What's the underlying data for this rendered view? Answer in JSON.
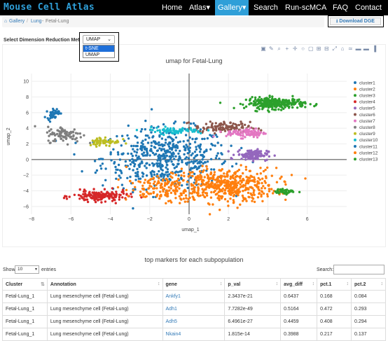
{
  "navbar": {
    "brand": "Mouse Cell Atlas",
    "items": [
      {
        "label": "Home"
      },
      {
        "label": "Atlas▾"
      },
      {
        "label": "Gallery▾"
      },
      {
        "label": "Search"
      },
      {
        "label": "Run-scMCA"
      },
      {
        "label": "FAQ"
      },
      {
        "label": "Contact"
      }
    ]
  },
  "breadcrumb": {
    "gallery": "Gallery",
    "lung": "Lung",
    "current": "Fetal-Lung",
    "sep": "/",
    "sep2": "-"
  },
  "download": {
    "label": "Download DGE",
    "icon": "download-icon"
  },
  "dimension": {
    "label": "Select Dimension Reduction Method",
    "selected": "UMAP",
    "options": [
      "t-SNE",
      "UMAP"
    ],
    "highlighted": "t-SNE"
  },
  "modebar": {
    "icons": [
      "camera-icon",
      "edit-icon",
      "zoom-icon",
      "plus-icon",
      "pan-icon",
      "lasso-icon",
      "box-select-icon",
      "zoom-in-icon",
      "zoom-out-icon",
      "autoscale-icon",
      "reset-icon",
      "spike-icon",
      "hover-closest-icon",
      "hover-compare-icon",
      "plotly-logo-icon"
    ]
  },
  "chart_data": {
    "type": "scatter",
    "title": "umap for Fetal-Lung",
    "xlabel": "umap_1",
    "ylabel": "umap_2",
    "xlim": [
      -8,
      8
    ],
    "ylim": [
      -7,
      11
    ],
    "xticks": [
      -8,
      -6,
      -4,
      -2,
      0,
      2,
      4,
      6
    ],
    "yticks": [
      -6,
      -4,
      -2,
      0,
      2,
      4,
      6,
      8,
      10
    ],
    "zero_lines": true,
    "legend_position": "right",
    "series": [
      {
        "name": "cluster1",
        "color": "#1f77b4",
        "x": -1.2,
        "y": 0.2,
        "sx": 1.6,
        "sy": 1.9,
        "n": 520
      },
      {
        "name": "cluster2",
        "color": "#ff7f0e",
        "x": 1.8,
        "y": -3.3,
        "sx": 1.3,
        "sy": 1.1,
        "n": 480
      },
      {
        "name": "cluster3",
        "color": "#2ca02c",
        "x": 4.4,
        "y": 7.2,
        "sx": 0.75,
        "sy": 0.35,
        "n": 260
      },
      {
        "name": "cluster4",
        "color": "#d62728",
        "x": -4.5,
        "y": -4.7,
        "sx": 0.7,
        "sy": 0.35,
        "n": 150
      },
      {
        "name": "cluster5",
        "color": "#9467bd",
        "x": 3.2,
        "y": 0.6,
        "sx": 0.4,
        "sy": 0.35,
        "n": 110
      },
      {
        "name": "cluster6",
        "color": "#8c564b",
        "x": 1.7,
        "y": 4.1,
        "sx": 0.7,
        "sy": 0.35,
        "n": 110
      },
      {
        "name": "cluster7",
        "color": "#e377c2",
        "x": 2.9,
        "y": 3.4,
        "sx": 0.5,
        "sy": 0.3,
        "n": 90
      },
      {
        "name": "cluster8",
        "color": "#7f7f7f",
        "x": -6.3,
        "y": 3.2,
        "sx": 0.45,
        "sy": 0.5,
        "n": 90
      },
      {
        "name": "cluster9",
        "color": "#bcbd22",
        "x": -4.3,
        "y": 2.3,
        "sx": 0.4,
        "sy": 0.3,
        "n": 60
      },
      {
        "name": "cluster10",
        "color": "#17becf",
        "x": -0.8,
        "y": 3.7,
        "sx": 0.8,
        "sy": 0.2,
        "n": 70
      },
      {
        "name": "cluster11",
        "color": "#1f77b4",
        "x": -6.9,
        "y": 5.9,
        "sx": 0.15,
        "sy": 0.35,
        "n": 40
      },
      {
        "name": "cluster12",
        "color": "#ff7f0e",
        "x": -1.4,
        "y": -3.8,
        "sx": 0.9,
        "sy": 0.8,
        "n": 140
      },
      {
        "name": "cluster13",
        "color": "#2ca02c",
        "x": 4.9,
        "y": -4.1,
        "sx": 0.25,
        "sy": 0.15,
        "n": 35
      }
    ]
  },
  "table": {
    "title": "top markers for each subpopulation",
    "show_label": "Show",
    "length": "10",
    "entries_label": "entries",
    "search_label": "Search:",
    "columns": [
      "Cluster",
      "Annotation",
      "gene",
      "p_val",
      "avg_diff",
      "pct.1",
      "pct.2"
    ],
    "rows": [
      [
        "Fetal-Lung_1",
        "Lung mesenchyme cell (Fetal-Lung)",
        "Ankfy1",
        "2.3437e-21",
        "0.6437",
        "0.168",
        "0.084"
      ],
      [
        "Fetal-Lung_1",
        "Lung mesenchyme cell (Fetal-Lung)",
        "Adh1",
        "7.7282e-49",
        "0.5164",
        "0.472",
        "0.293"
      ],
      [
        "Fetal-Lung_1",
        "Lung mesenchyme cell (Fetal-Lung)",
        "Adh5",
        "6.4961e-27",
        "0.4459",
        "0.408",
        "0.294"
      ],
      [
        "Fetal-Lung_1",
        "Lung mesenchyme cell (Fetal-Lung)",
        "Nkain4",
        "1.815e-14",
        "0.3988",
        "0.217",
        "0.137"
      ]
    ]
  }
}
